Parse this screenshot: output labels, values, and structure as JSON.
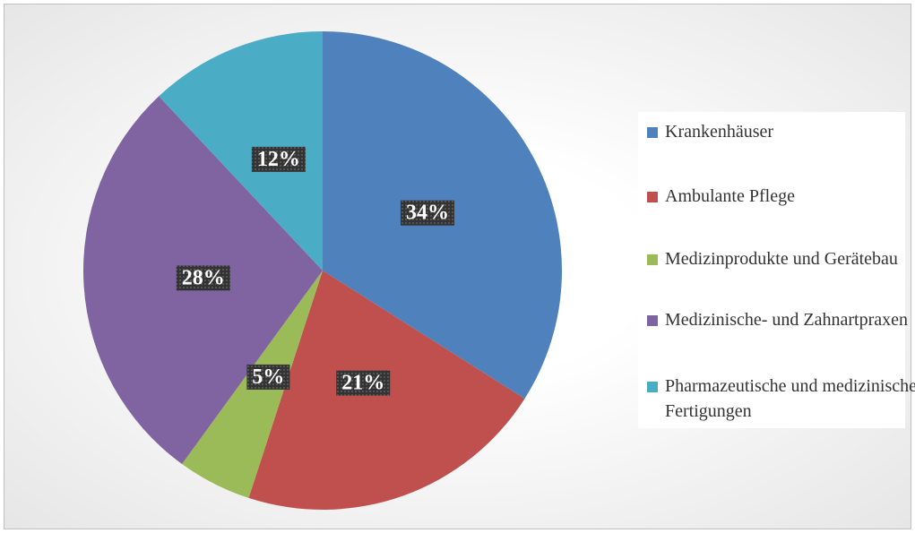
{
  "chart_data": {
    "type": "pie",
    "categories": [
      "Krankenhäuser",
      "Ambulante Pflege",
      "Medizinprodukte und Gerätebau",
      "Medizinische- und Zahnartpraxen",
      "Pharmazeutische und medizinische Fertigungen"
    ],
    "values": [
      34,
      21,
      5,
      28,
      12
    ],
    "value_labels": [
      "34%",
      "21%",
      "5%",
      "28%",
      "12%"
    ],
    "colors": [
      "#4f81bd",
      "#c0504d",
      "#9bbb59",
      "#8064a2",
      "#4bacc6"
    ],
    "legend": "right"
  }
}
